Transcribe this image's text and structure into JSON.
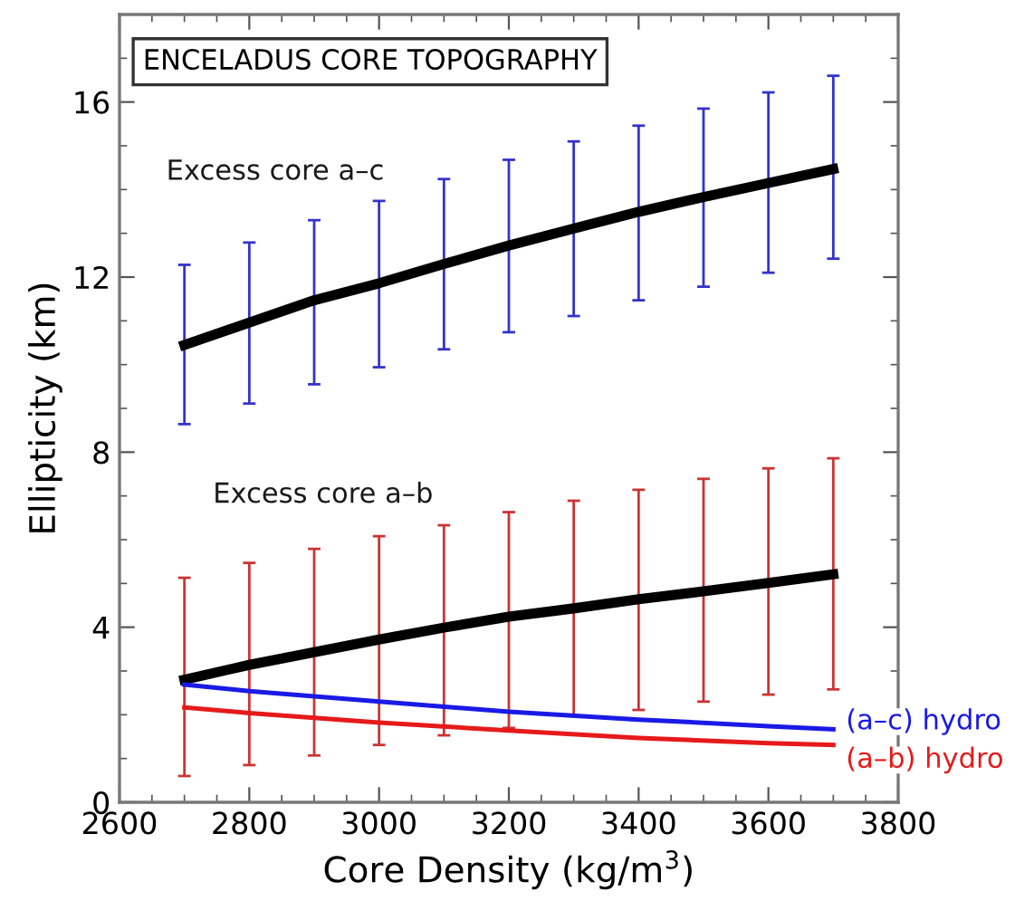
{
  "chart_data": {
    "type": "line",
    "title": "ENCELADUS CORE TOPOGRAPHY",
    "xlabel": "Core Density (kg/m$^{3}$)",
    "ylabel": "Ellipticity (km)",
    "x": [
      2700,
      2800,
      2900,
      3000,
      3100,
      3200,
      3300,
      3400,
      3500,
      3600,
      3700
    ],
    "series": [
      {
        "color": "#000000",
        "colors": [
          "#3333cc",
          "#3333cc",
          "#3333cc",
          "#3333cc",
          "#3333cc",
          "#3333cc",
          "#3333cc",
          "#3333cc",
          "#3333cc",
          "#3333cc",
          "#3333cc"
        ],
        "values": [
          10.45,
          10.96,
          11.47,
          11.86,
          12.3,
          12.72,
          13.11,
          13.49,
          13.83,
          14.15,
          14.47
        ],
        "errors": [
          [
            8.64,
            12.28
          ],
          [
            9.11,
            12.79
          ],
          [
            9.55,
            13.3
          ],
          [
            9.94,
            13.74
          ],
          [
            10.35,
            14.24
          ],
          [
            10.74,
            14.68
          ],
          [
            11.11,
            15.1
          ],
          [
            11.47,
            15.46
          ],
          [
            11.78,
            15.85
          ],
          [
            12.1,
            16.22
          ],
          [
            12.42,
            16.6
          ]
        ]
      },
      {
        "color": "#000000",
        "colors": [
          "#cc3333",
          "#cc3333",
          "#cc3333",
          "#cc3333",
          "#cc3333",
          "#cc3333",
          "#cc3333",
          "#cc3333",
          "#cc3333",
          "#cc3333",
          "#cc3333"
        ],
        "values": [
          2.8,
          3.14,
          3.43,
          3.72,
          3.99,
          4.24,
          4.43,
          4.64,
          4.82,
          5.01,
          5.21
        ],
        "errors": [
          [
            0.6,
            5.13
          ],
          [
            0.85,
            5.47
          ],
          [
            1.07,
            5.79
          ],
          [
            1.31,
            6.08
          ],
          [
            1.53,
            6.33
          ],
          [
            1.7,
            6.63
          ],
          [
            1.97,
            6.89
          ],
          [
            2.11,
            7.14
          ],
          [
            2.3,
            7.39
          ],
          [
            2.46,
            7.63
          ],
          [
            2.58,
            7.86
          ]
        ]
      },
      {
        "name": "(a–c) hydro",
        "color": "#1a1ae6",
        "x": [
          2700,
          2800,
          3000,
          3200,
          3400,
          3600,
          3700
        ],
        "values": [
          2.69,
          2.54,
          2.3,
          2.07,
          1.89,
          1.74,
          1.67
        ]
      },
      {
        "name": "(a–b) hydro",
        "color": "#e61a1a",
        "x": [
          2700,
          2800,
          3000,
          3200,
          3400,
          3600,
          3700
        ],
        "values": [
          2.17,
          2.04,
          1.82,
          1.64,
          1.47,
          1.35,
          1.31
        ]
      }
    ],
    "xlim": [
      2600,
      3800
    ],
    "xticks": [
      2600,
      2800,
      3000,
      3200,
      3400,
      3600,
      3800
    ],
    "ylim": [
      0,
      18
    ],
    "yticks": [
      0,
      4,
      8,
      12,
      16
    ],
    "annotations": [
      "Excess core a–c",
      "Excess core a–b"
    ],
    "grid": false,
    "legend": false,
    "marker": "none",
    "line_style": "solid"
  }
}
